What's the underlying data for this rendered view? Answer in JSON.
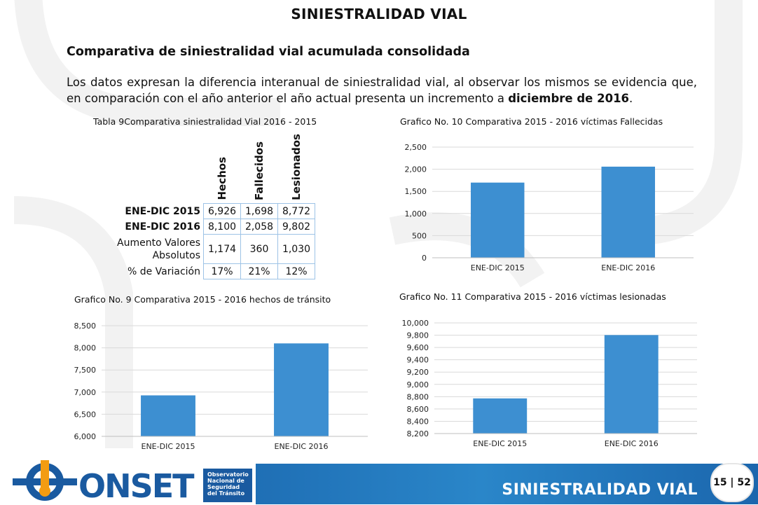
{
  "page": {
    "title": "SINIESTRALIDAD VIAL",
    "subtitle": "Comparativa de siniestralidad vial acumulada consolidada",
    "paragraph_start": "Los datos expresan la diferencia interanual de siniestralidad vial, al observar los mismos se evidencia que, en comparación con el año anterior el año actual presenta un incremento a ",
    "paragraph_bold": "diciembre de 2016",
    "paragraph_end": "."
  },
  "table9": {
    "caption": "Tabla 9Comparativa siniestralidad Vial 2016 - 2015",
    "headers": [
      "Hechos",
      "Fallecidos",
      "Lesionados"
    ],
    "rows": [
      {
        "label": "ENE-DIC 2015",
        "values": [
          "6,926",
          "1,698",
          "8,772"
        ]
      },
      {
        "label": "ENE-DIC 2016",
        "values": [
          "8,100",
          "2,058",
          "9,802"
        ]
      },
      {
        "label": "Aumento Valores Absolutos",
        "values": [
          "1,174",
          "360",
          "1,030"
        ]
      },
      {
        "label": "% de Variación",
        "values": [
          "17%",
          "21%",
          "12%"
        ]
      }
    ]
  },
  "chart_data": [
    {
      "id": "fallecidos",
      "type": "bar",
      "title": "Grafico No. 10 Comparativa 2015 - 2016 víctimas Fallecidas",
      "categories": [
        "ENE-DIC 2015",
        "ENE-DIC 2016"
      ],
      "values": [
        1698,
        2058
      ],
      "ylim": [
        0,
        2500
      ],
      "yticks": [
        0,
        500,
        1000,
        1500,
        2000,
        2500
      ],
      "ytick_labels": [
        "0",
        "500",
        "1,000",
        "1,500",
        "2,000",
        "2,500"
      ],
      "color": "#3d8fd1",
      "grid": true
    },
    {
      "id": "hechos",
      "type": "bar",
      "title": "Grafico No. 9 Comparativa 2015 - 2016 hechos de tránsito",
      "categories": [
        "ENE-DIC 2015",
        "ENE-DIC 2016"
      ],
      "values": [
        6926,
        8100
      ],
      "ylim": [
        6000,
        8500
      ],
      "yticks": [
        6000,
        6500,
        7000,
        7500,
        8000,
        8500
      ],
      "ytick_labels": [
        "6,000",
        "6,500",
        "7,000",
        "7,500",
        "8,000",
        "8,500"
      ],
      "color": "#3d8fd1",
      "grid": true
    },
    {
      "id": "lesionados",
      "type": "bar",
      "title": "Grafico No. 11 Comparativa 2015 - 2016 víctimas lesionadas",
      "categories": [
        "ENE-DIC 2015",
        "ENE-DIC 2016"
      ],
      "values": [
        8772,
        9802
      ],
      "ylim": [
        8200,
        10000
      ],
      "yticks": [
        8200,
        8400,
        8600,
        8800,
        9000,
        9200,
        9400,
        9600,
        9800,
        10000
      ],
      "ytick_labels": [
        "8,200",
        "8,400",
        "8,600",
        "8,800",
        "9,000",
        "9,200",
        "9,400",
        "9,600",
        "9,800",
        "10,000"
      ],
      "color": "#3d8fd1",
      "grid": true
    }
  ],
  "footer": {
    "logo_text": "ONSET",
    "logo_sub": [
      "Observatorio",
      "Nacional de",
      "Seguridad",
      "del Tránsito"
    ],
    "title": "SINIESTRALIDAD VIAL",
    "page_number": "15 | 52",
    "band_color": "#1f6fb5",
    "logo_color": "#1a5aa0",
    "logo_accent": "#f39c12"
  }
}
